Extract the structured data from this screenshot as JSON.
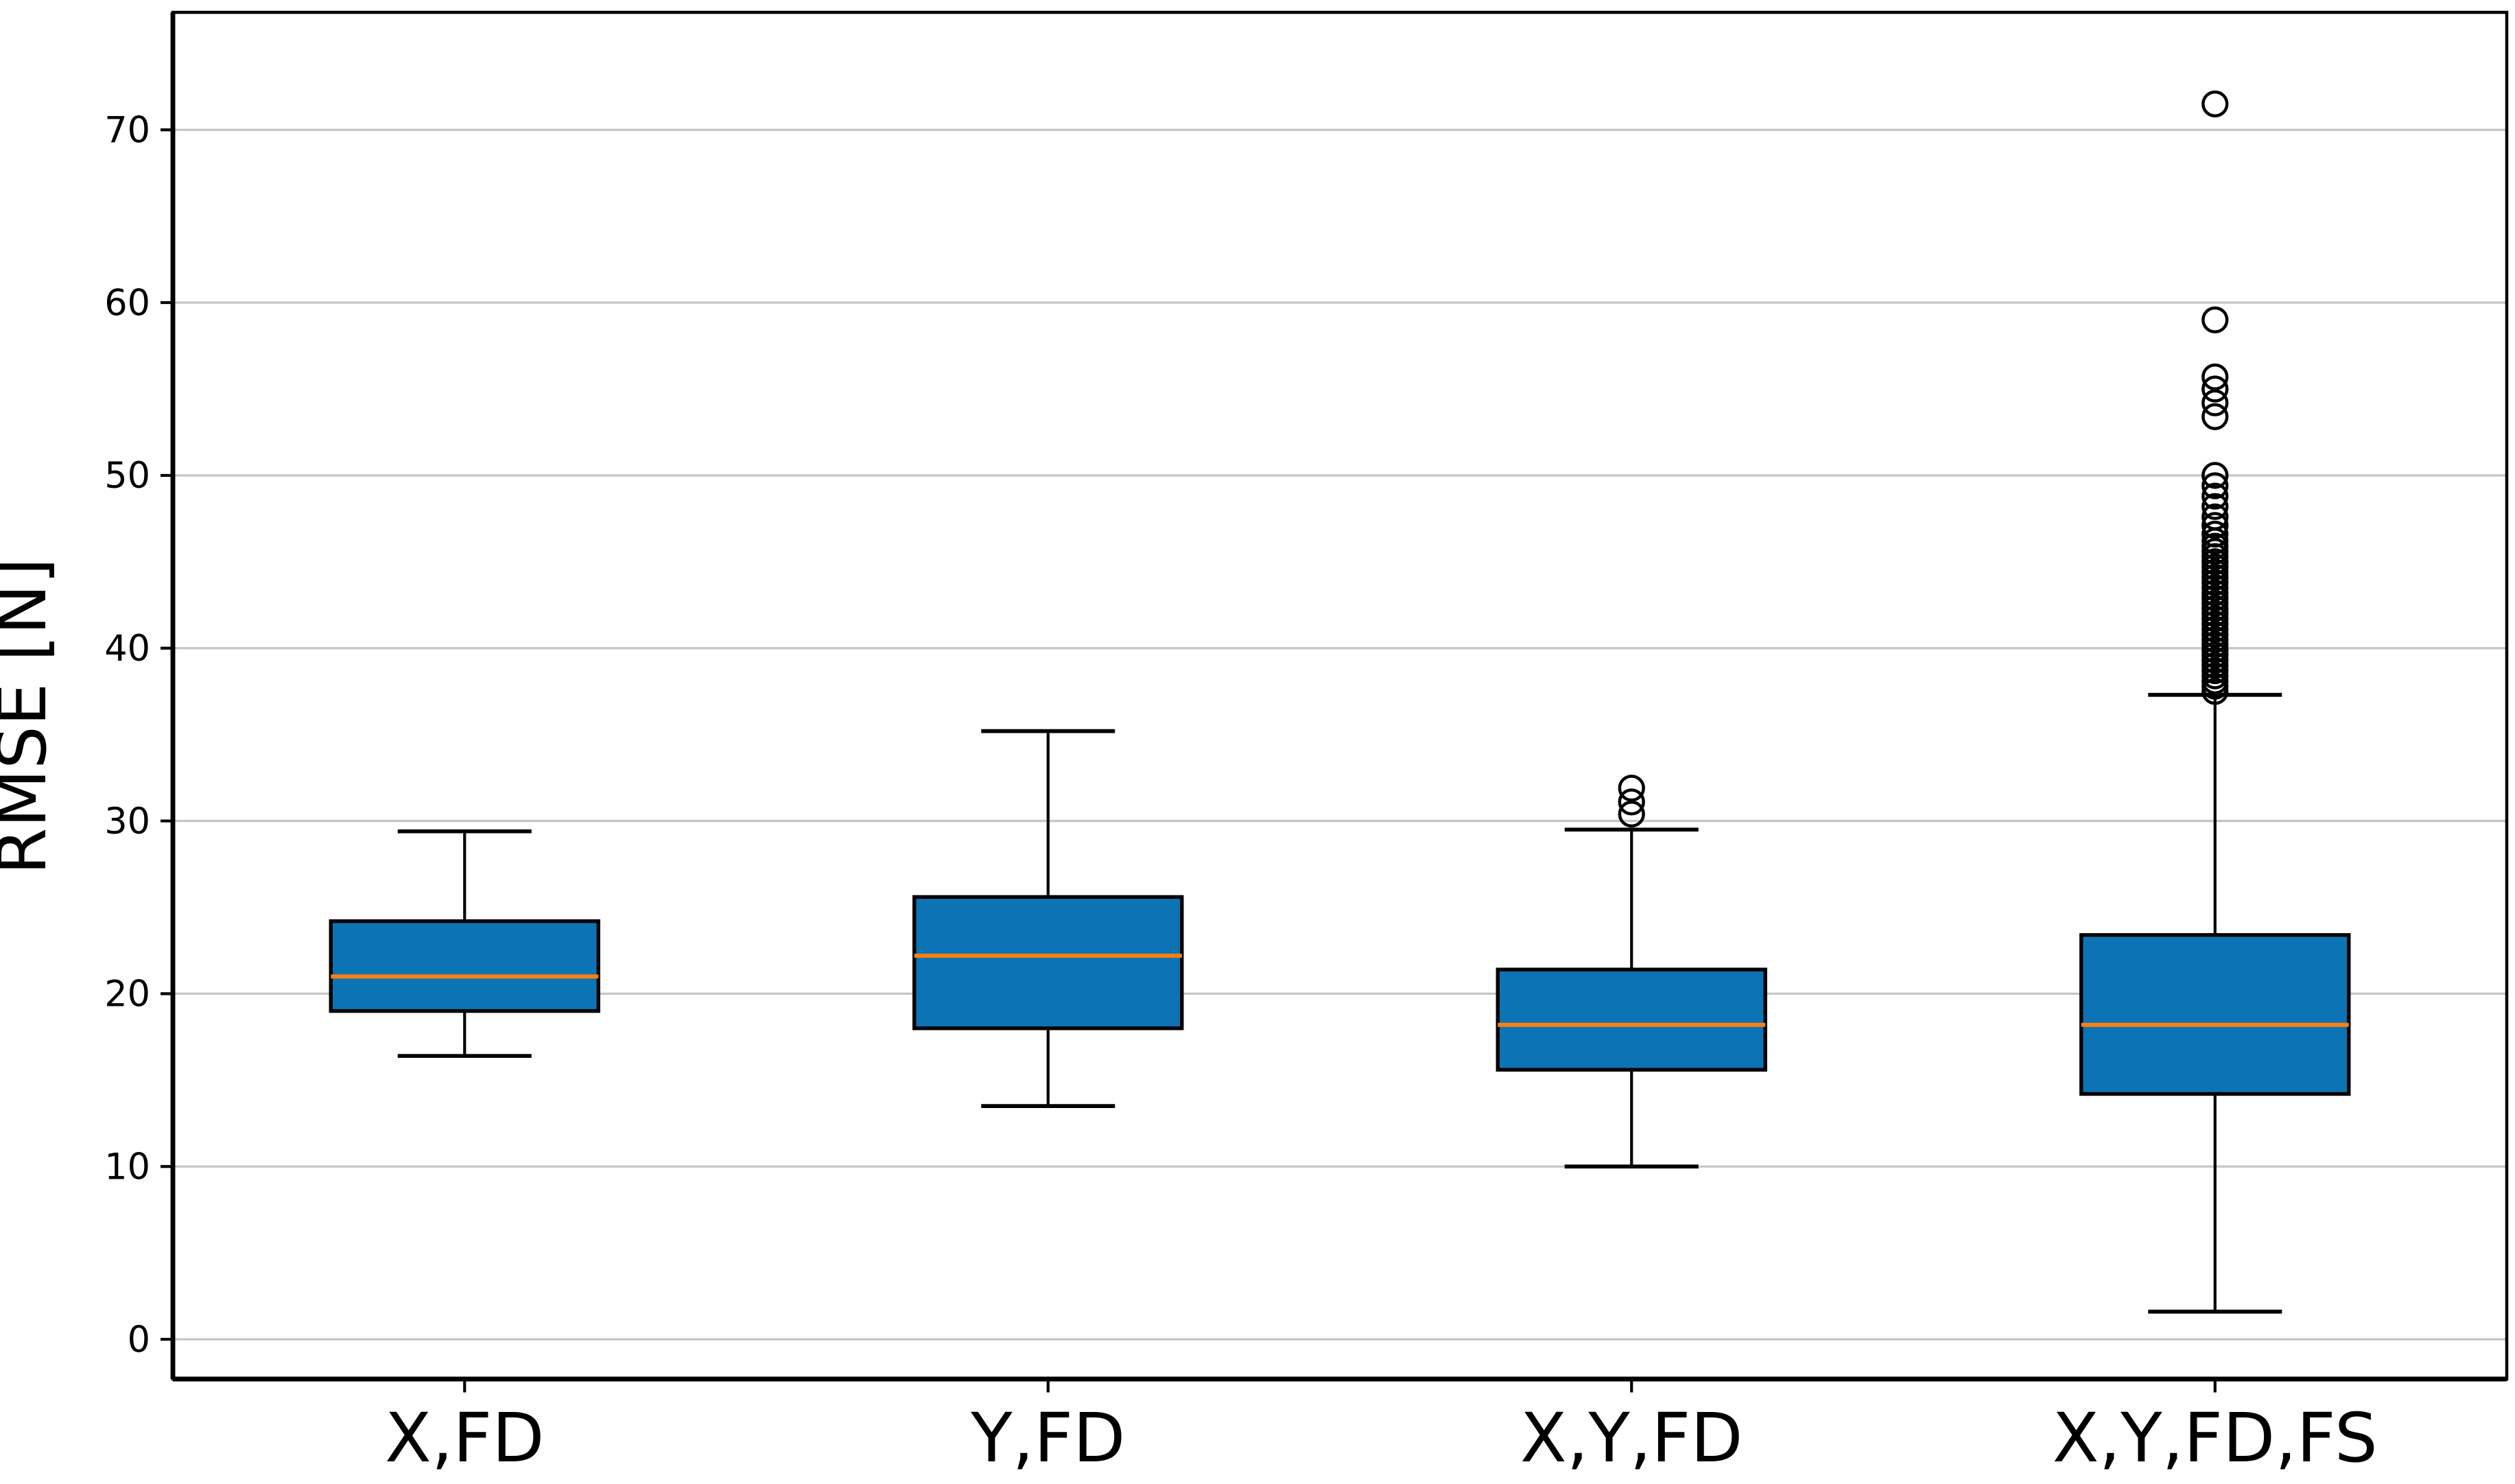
{
  "chart_data": {
    "type": "box",
    "title": "",
    "xlabel": "",
    "ylabel": "RMSE [N]",
    "ylim": [
      -2.3,
      76.8
    ],
    "yticks": [
      0,
      10,
      20,
      30,
      40,
      50,
      60,
      70
    ],
    "grid": "horizontal",
    "legend": "none",
    "categories": [
      "X,FD",
      "Y,FD",
      "X,Y,FD",
      "X,Y,FD,FS"
    ],
    "series": [
      {
        "name": "X,FD",
        "whisker_low": 16.4,
        "q1": 19.0,
        "median": 21.0,
        "q3": 24.2,
        "whisker_high": 29.4,
        "outliers": []
      },
      {
        "name": "Y,FD",
        "whisker_low": 13.5,
        "q1": 18.0,
        "median": 22.2,
        "q3": 25.6,
        "whisker_high": 35.2,
        "outliers": []
      },
      {
        "name": "X,Y,FD",
        "whisker_low": 10.0,
        "q1": 15.6,
        "median": 18.2,
        "q3": 21.4,
        "whisker_high": 29.5,
        "outliers": [
          30.4,
          31.1,
          31.9
        ]
      },
      {
        "name": "X,Y,FD,FS",
        "whisker_low": 1.6,
        "q1": 14.2,
        "median": 18.2,
        "q3": 23.4,
        "whisker_high": 37.3,
        "outliers": [
          37.5,
          37.8,
          38.1,
          38.4,
          38.7,
          39.0,
          39.3,
          39.6,
          39.9,
          40.2,
          40.5,
          40.8,
          41.1,
          41.4,
          41.7,
          42.0,
          42.3,
          42.6,
          42.9,
          43.2,
          43.5,
          43.8,
          44.1,
          44.4,
          44.7,
          45.0,
          45.3,
          45.6,
          45.9,
          46.2,
          46.6,
          47.1,
          47.6,
          48.2,
          48.8,
          49.4,
          50.0,
          53.4,
          54.2,
          55.0,
          55.7,
          59.0,
          71.5
        ]
      }
    ],
    "style": {
      "box_fill": "#0c74b4",
      "median_color": "#ff7f0e",
      "grid_color": "#c6c6c6",
      "axis_color": "#000000",
      "outlier_stroke": "#000000",
      "background": "#ffffff"
    }
  }
}
